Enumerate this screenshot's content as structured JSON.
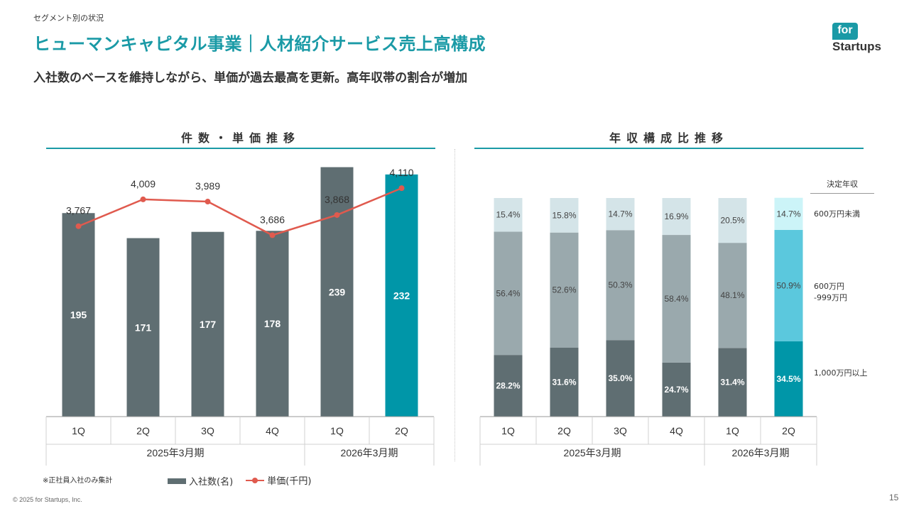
{
  "header": {
    "section_label": "セグメント別の状況",
    "title": "ヒューマンキャピタル事業｜人材紹介サービス売上高構成",
    "subtitle": "入社数のベースを維持しながら、単価が過去最高を更新。高年収帯の割合が増加",
    "logo_top": "for",
    "logo_bottom": "Startups"
  },
  "colors": {
    "accent": "#1a9aa6",
    "bar_gray": "#5f6e72",
    "bar_teal": "#0096a8",
    "line_red": "#e05a4e",
    "mid_gray": "#9aa9ad",
    "light_gray": "#d4e4e8",
    "mid_cyan": "#5bc8dd",
    "light_cyan": "#ccf4f8"
  },
  "chart_data": [
    {
      "type": "bar+line",
      "title": "件数・単価推移",
      "categories": [
        "1Q",
        "2Q",
        "3Q",
        "4Q",
        "1Q",
        "2Q"
      ],
      "groups": [
        {
          "label": "2025年3月期",
          "span": 4
        },
        {
          "label": "2026年3月期",
          "span": 2
        }
      ],
      "series": [
        {
          "name": "入社数(名)",
          "type": "bar",
          "values": [
            195,
            171,
            177,
            178,
            239,
            232
          ]
        },
        {
          "name": "単価(千円)",
          "type": "line",
          "values": [
            3767,
            4009,
            3989,
            3686,
            3868,
            4110
          ],
          "labels": [
            "3,767",
            "4,009",
            "3,989",
            "3,686",
            "3,868",
            "4,110"
          ]
        }
      ],
      "highlight_index": 5,
      "bar_ylim": [
        0,
        255
      ],
      "line_ylim": [
        2050,
        4450
      ],
      "legend_position": "bottom"
    },
    {
      "type": "stacked-bar-100",
      "title": "年収構成比推移",
      "categories": [
        "1Q",
        "2Q",
        "3Q",
        "4Q",
        "1Q",
        "2Q"
      ],
      "groups": [
        {
          "label": "2025年3月期",
          "span": 4
        },
        {
          "label": "2026年3月期",
          "span": 2
        }
      ],
      "legend_title": "決定年収",
      "series": [
        {
          "name": "1,000万円以上",
          "values": [
            28.2,
            31.6,
            35.0,
            24.7,
            31.4,
            34.5
          ],
          "labels": [
            "28.2%",
            "31.6%",
            "35.0%",
            "24.7%",
            "31.4%",
            "34.5%"
          ]
        },
        {
          "name": "600万円\n-999万円",
          "values": [
            56.4,
            52.6,
            50.3,
            58.4,
            48.1,
            50.9
          ],
          "labels": [
            "56.4%",
            "52.6%",
            "50.3%",
            "58.4%",
            "48.1%",
            "50.9%"
          ]
        },
        {
          "name": "600万円未満",
          "values": [
            15.4,
            15.8,
            14.7,
            16.9,
            20.5,
            14.7
          ],
          "labels": [
            "15.4%",
            "15.8%",
            "14.7%",
            "16.9%",
            "20.5%",
            "14.7%"
          ]
        }
      ],
      "highlight_index": 5
    }
  ],
  "footer": {
    "footnote": "※正社員入社のみ集計",
    "copyright": "© 2025 for Startups, Inc.",
    "page_number": "15"
  }
}
